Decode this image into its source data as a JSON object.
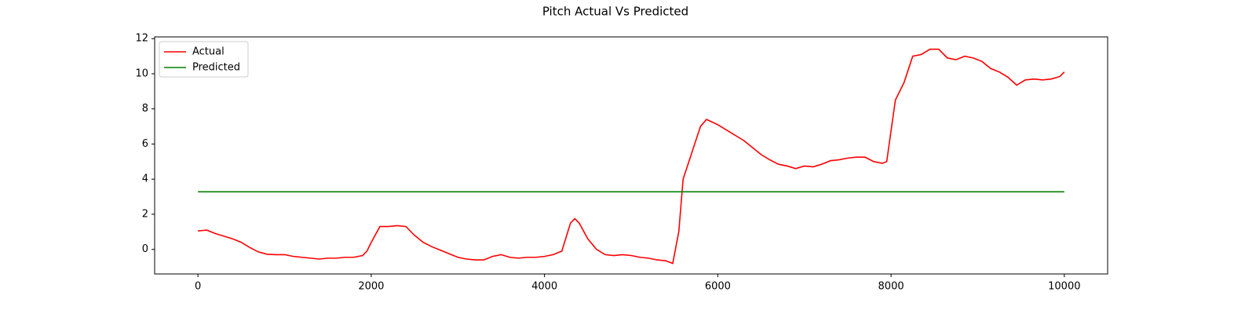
{
  "chart_data": {
    "type": "line",
    "title": "Pitch Actual Vs Predicted",
    "xlim": [
      -500,
      10500
    ],
    "ylim": [
      -1.4,
      12.1
    ],
    "xticks": [
      0,
      2000,
      4000,
      6000,
      8000,
      10000
    ],
    "yticks": [
      0,
      2,
      4,
      6,
      8,
      10,
      12
    ],
    "legend": "upper left",
    "grid": false,
    "series": [
      {
        "name": "Actual",
        "color": "#ff0000",
        "x": [
          0,
          100,
          200,
          300,
          400,
          500,
          600,
          700,
          800,
          900,
          1000,
          1100,
          1200,
          1300,
          1400,
          1500,
          1600,
          1700,
          1800,
          1900,
          1950,
          2000,
          2100,
          2200,
          2300,
          2400,
          2500,
          2600,
          2700,
          2800,
          2900,
          3000,
          3100,
          3200,
          3300,
          3400,
          3500,
          3600,
          3700,
          3800,
          3900,
          4000,
          4100,
          4200,
          4300,
          4350,
          4400,
          4500,
          4600,
          4700,
          4800,
          4900,
          5000,
          5100,
          5200,
          5300,
          5400,
          5480,
          5550,
          5600,
          5700,
          5800,
          5870,
          6000,
          6100,
          6200,
          6300,
          6400,
          6500,
          6600,
          6700,
          6800,
          6900,
          7000,
          7100,
          7200,
          7300,
          7400,
          7500,
          7600,
          7700,
          7800,
          7900,
          7950,
          8050,
          8150,
          8250,
          8350,
          8450,
          8550,
          8650,
          8750,
          8850,
          8950,
          9050,
          9150,
          9250,
          9350,
          9450,
          9550,
          9650,
          9750,
          9850,
          9950,
          10000
        ],
        "values": [
          1.05,
          1.1,
          0.9,
          0.75,
          0.6,
          0.4,
          0.1,
          -0.15,
          -0.28,
          -0.3,
          -0.3,
          -0.4,
          -0.45,
          -0.5,
          -0.55,
          -0.5,
          -0.5,
          -0.45,
          -0.45,
          -0.35,
          -0.1,
          0.4,
          1.3,
          1.3,
          1.35,
          1.3,
          0.8,
          0.4,
          0.15,
          -0.05,
          -0.25,
          -0.45,
          -0.55,
          -0.6,
          -0.6,
          -0.4,
          -0.3,
          -0.45,
          -0.5,
          -0.45,
          -0.45,
          -0.4,
          -0.3,
          -0.1,
          1.5,
          1.75,
          1.5,
          0.6,
          0,
          -0.3,
          -0.35,
          -0.3,
          -0.35,
          -0.45,
          -0.5,
          -0.6,
          -0.65,
          -0.8,
          1.0,
          4.0,
          5.5,
          7.0,
          7.4,
          7.1,
          6.8,
          6.5,
          6.2,
          5.8,
          5.4,
          5.1,
          4.85,
          4.75,
          4.6,
          4.75,
          4.7,
          4.85,
          5.05,
          5.1,
          5.2,
          5.25,
          5.25,
          5.0,
          4.9,
          5.0,
          8.5,
          9.5,
          11.0,
          11.1,
          11.4,
          11.4,
          10.9,
          10.8,
          11.0,
          10.9,
          10.7,
          10.3,
          10.1,
          9.8,
          9.35,
          9.65,
          9.7,
          9.65,
          9.7,
          9.85,
          10.1
        ]
      },
      {
        "name": "Predicted",
        "color": "#008000",
        "x": [
          0,
          10000
        ],
        "values": [
          3.28,
          3.28
        ]
      }
    ]
  }
}
